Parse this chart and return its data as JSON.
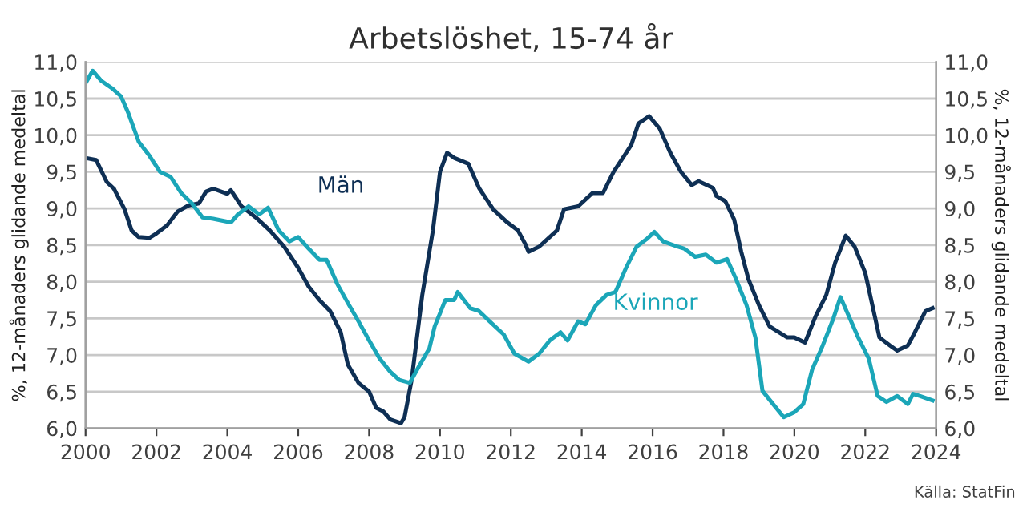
{
  "chart_data": {
    "type": "line",
    "title": "Arbetslöshet, 15-74 år",
    "ylabel": "%, 12-månaders glidande medeltal",
    "y2label": "%, 12-månaders glidande medeltal",
    "xlim": [
      2000,
      2024
    ],
    "xticks": [
      2000,
      2002,
      2004,
      2006,
      2008,
      2010,
      2012,
      2014,
      2016,
      2018,
      2020,
      2022,
      2024
    ],
    "ylim": [
      6.0,
      11.0
    ],
    "yticks": [
      {
        "value": 6.0,
        "label": "6,0"
      },
      {
        "value": 6.5,
        "label": "6,5"
      },
      {
        "value": 7.0,
        "label": "7,0"
      },
      {
        "value": 7.5,
        "label": "7,5"
      },
      {
        "value": 8.0,
        "label": "8,0"
      },
      {
        "value": 8.5,
        "label": "8,5"
      },
      {
        "value": 9.0,
        "label": "9,0"
      },
      {
        "value": 9.5,
        "label": "9,5"
      },
      {
        "value": 10.0,
        "label": "10,0"
      },
      {
        "value": 10.5,
        "label": "10,5"
      },
      {
        "value": 11.0,
        "label": "11,0"
      }
    ],
    "y2lim": [
      6.0,
      11.0
    ],
    "y2ticks": [
      {
        "value": 6.0,
        "label": "6,0"
      },
      {
        "value": 6.5,
        "label": "6,5"
      },
      {
        "value": 7.0,
        "label": "7,0"
      },
      {
        "value": 7.5,
        "label": "7,5"
      },
      {
        "value": 8.0,
        "label": "8,0"
      },
      {
        "value": 8.5,
        "label": "8,5"
      },
      {
        "value": 9.0,
        "label": "9,0"
      },
      {
        "value": 9.5,
        "label": "9,5"
      },
      {
        "value": 10.0,
        "label": "10,0"
      },
      {
        "value": 10.5,
        "label": "10,5"
      },
      {
        "value": 11.0,
        "label": "11,0"
      }
    ],
    "grid": "y",
    "legend": false,
    "marker": "none",
    "line_style": "solid",
    "annotations": [
      "Källa: StatFin"
    ],
    "series": [
      {
        "name": "Män",
        "color": "#0e2f54",
        "x": [
          2000.0,
          2000.3,
          2000.6,
          2000.8,
          2001.1,
          2001.3,
          2001.5,
          2001.8,
          2002.0,
          2002.3,
          2002.6,
          2002.9,
          2003.2,
          2003.4,
          2003.6,
          2004.0,
          2004.1,
          2004.4,
          2004.8,
          2005.2,
          2005.6,
          2006.0,
          2006.3,
          2006.6,
          2006.9,
          2007.2,
          2007.4,
          2007.7,
          2008.0,
          2008.2,
          2008.4,
          2008.6,
          2008.9,
          2009.0,
          2009.2,
          2009.5,
          2009.8,
          2010.0,
          2010.2,
          2010.4,
          2010.8,
          2011.1,
          2011.5,
          2011.9,
          2012.2,
          2012.4,
          2012.5,
          2012.8,
          2013.3,
          2013.5,
          2013.9,
          2014.3,
          2014.6,
          2014.9,
          2015.2,
          2015.4,
          2015.6,
          2015.9,
          2016.2,
          2016.5,
          2016.8,
          2017.1,
          2017.3,
          2017.7,
          2017.8,
          2018.05,
          2018.3,
          2018.5,
          2018.7,
          2019.0,
          2019.3,
          2019.8,
          2020.0,
          2020.3,
          2020.6,
          2020.9,
          2021.15,
          2021.45,
          2021.7,
          2022.0,
          2022.2,
          2022.4,
          2022.7,
          2022.9,
          2023.2,
          2023.4,
          2023.7,
          2023.9
        ],
        "values": [
          9.69,
          9.66,
          9.36,
          9.27,
          8.99,
          8.7,
          8.61,
          8.6,
          8.66,
          8.77,
          8.96,
          9.04,
          9.07,
          9.23,
          9.27,
          9.2,
          9.25,
          9.03,
          8.88,
          8.7,
          8.48,
          8.19,
          7.93,
          7.75,
          7.6,
          7.31,
          6.87,
          6.62,
          6.5,
          6.28,
          6.23,
          6.12,
          6.07,
          6.15,
          6.66,
          7.82,
          8.7,
          9.5,
          9.76,
          9.69,
          9.61,
          9.28,
          8.99,
          8.81,
          8.7,
          8.52,
          8.41,
          8.48,
          8.7,
          8.99,
          9.03,
          9.21,
          9.21,
          9.5,
          9.72,
          9.87,
          10.16,
          10.26,
          10.09,
          9.76,
          9.5,
          9.32,
          9.37,
          9.28,
          9.17,
          9.1,
          8.85,
          8.41,
          8.04,
          7.68,
          7.39,
          7.24,
          7.24,
          7.17,
          7.53,
          7.82,
          8.26,
          8.63,
          8.48,
          8.12,
          7.68,
          7.24,
          7.13,
          7.06,
          7.13,
          7.31,
          7.6,
          7.64
        ]
      },
      {
        "name": "Kvinnor",
        "color": "#1ba6b8",
        "x": [
          2000.0,
          2000.2,
          2000.45,
          2000.75,
          2001.0,
          2001.2,
          2001.5,
          2001.8,
          2002.1,
          2002.4,
          2002.7,
          2003.0,
          2003.3,
          2003.6,
          2004.1,
          2004.3,
          2004.6,
          2004.9,
          2005.15,
          2005.45,
          2005.75,
          2006.0,
          2006.3,
          2006.6,
          2006.8,
          2007.1,
          2007.4,
          2007.7,
          2008.0,
          2008.3,
          2008.6,
          2008.85,
          2009.15,
          2009.4,
          2009.7,
          2009.85,
          2010.15,
          2010.4,
          2010.5,
          2010.85,
          2011.1,
          2011.4,
          2011.8,
          2012.1,
          2012.5,
          2012.8,
          2013.1,
          2013.4,
          2013.6,
          2013.9,
          2014.1,
          2014.4,
          2014.7,
          2014.95,
          2015.25,
          2015.55,
          2015.85,
          2016.05,
          2016.3,
          2016.7,
          2016.9,
          2017.2,
          2017.5,
          2017.8,
          2018.1,
          2018.35,
          2018.65,
          2018.9,
          2019.1,
          2019.4,
          2019.7,
          2020.0,
          2020.25,
          2020.5,
          2020.8,
          2021.1,
          2021.3,
          2021.5,
          2021.8,
          2022.1,
          2022.35,
          2022.6,
          2022.9,
          2023.2,
          2023.35,
          2023.55,
          2023.9
        ],
        "values": [
          10.71,
          10.88,
          10.74,
          10.64,
          10.53,
          10.31,
          9.91,
          9.72,
          9.5,
          9.43,
          9.21,
          9.07,
          8.88,
          8.86,
          8.81,
          8.92,
          9.03,
          8.92,
          9.01,
          8.7,
          8.55,
          8.61,
          8.45,
          8.3,
          8.3,
          7.97,
          7.71,
          7.46,
          7.2,
          6.95,
          6.77,
          6.66,
          6.62,
          6.84,
          7.09,
          7.39,
          7.75,
          7.75,
          7.86,
          7.64,
          7.6,
          7.46,
          7.28,
          7.02,
          6.91,
          7.02,
          7.2,
          7.31,
          7.2,
          7.46,
          7.42,
          7.68,
          7.82,
          7.86,
          8.19,
          8.48,
          8.59,
          8.68,
          8.55,
          8.48,
          8.45,
          8.34,
          8.37,
          8.26,
          8.31,
          8.04,
          7.68,
          7.24,
          6.51,
          6.33,
          6.15,
          6.22,
          6.33,
          6.8,
          7.13,
          7.5,
          7.79,
          7.57,
          7.24,
          6.95,
          6.44,
          6.36,
          6.44,
          6.33,
          6.47,
          6.44,
          6.38
        ]
      }
    ]
  }
}
